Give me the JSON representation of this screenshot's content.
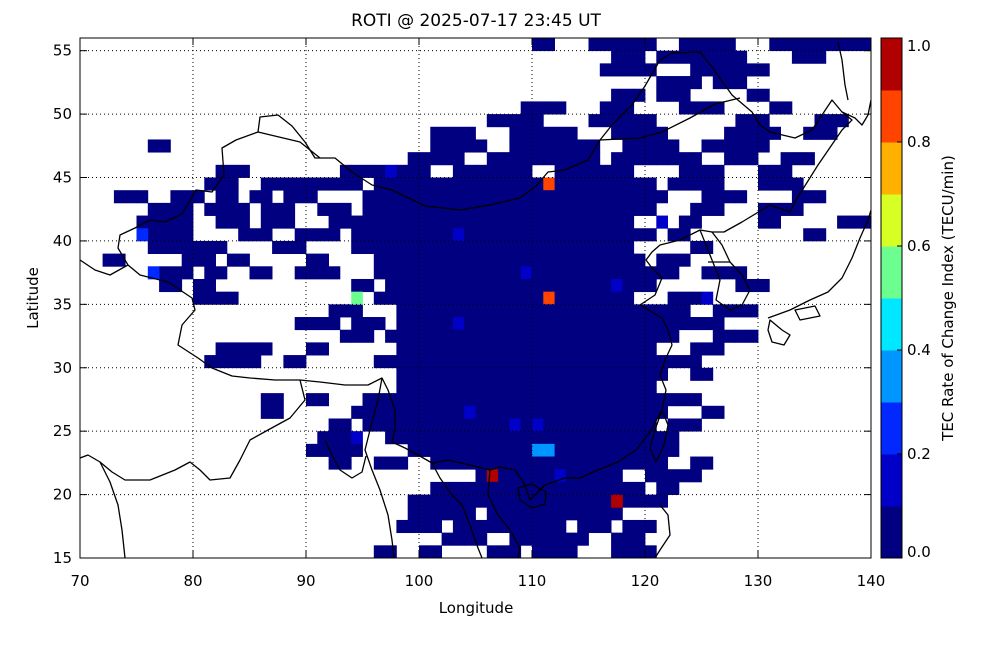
{
  "chart_data": {
    "type": "heatmap",
    "title": "ROTI @ 2025-07-17 23:45 UT",
    "xlabel": "Longitude",
    "ylabel": "Latitude",
    "xlim": [
      70,
      140
    ],
    "ylim": [
      15,
      56
    ],
    "x_ticks": [
      "70",
      "80",
      "90",
      "100",
      "110",
      "120",
      "130",
      "140"
    ],
    "y_ticks": [
      "15",
      "20",
      "25",
      "30",
      "35",
      "40",
      "45",
      "50",
      "55"
    ],
    "grid": true,
    "cell_size_deg": 1,
    "colorbar": {
      "label": "TEC Rate of Change Index (TECU/min)",
      "range": [
        0.0,
        1.0
      ],
      "ticks": [
        "0.0",
        "0.2",
        "0.4",
        "0.6",
        "0.8",
        "1.0"
      ],
      "colors": [
        "#000080",
        "#0000c8",
        "#0028ff",
        "#0096ff",
        "#00e8ff",
        "#6cff90",
        "#d8ff24",
        "#ffb000",
        "#ff4400",
        "#b00000"
      ]
    },
    "background_level": 0.02,
    "rows": [
      {
        "lat": 55,
        "lon_ranges": [
          [
            110,
            111
          ],
          [
            115,
            120
          ],
          [
            123,
            127
          ],
          [
            131,
            139
          ]
        ]
      },
      {
        "lat": 54,
        "lon_ranges": [
          [
            117,
            119
          ],
          [
            121,
            128
          ],
          [
            133,
            135
          ]
        ]
      },
      {
        "lat": 53,
        "lon_ranges": [
          [
            116,
            120
          ],
          [
            124,
            130
          ]
        ]
      },
      {
        "lat": 52,
        "lon_ranges": [
          [
            121,
            124
          ],
          [
            126,
            128
          ]
        ]
      },
      {
        "lat": 51,
        "lon_ranges": [
          [
            117,
            119
          ],
          [
            121,
            123
          ],
          [
            129,
            130
          ]
        ]
      },
      {
        "lat": 50,
        "lon_ranges": [
          [
            109,
            112
          ],
          [
            116,
            118
          ],
          [
            123,
            126
          ],
          [
            131,
            132
          ]
        ]
      },
      {
        "lat": 49,
        "lon_ranges": [
          [
            106,
            110
          ],
          [
            115,
            120
          ],
          [
            128,
            130
          ],
          [
            135,
            137
          ]
        ]
      },
      {
        "lat": 48,
        "lon_ranges": [
          [
            101,
            104
          ],
          [
            108,
            113
          ],
          [
            117,
            121
          ],
          [
            127,
            131
          ],
          [
            134,
            136
          ]
        ]
      },
      {
        "lat": 47,
        "lon_ranges": [
          [
            76,
            77
          ],
          [
            101,
            105
          ],
          [
            108,
            115
          ],
          [
            118,
            122
          ],
          [
            125,
            130
          ]
        ]
      },
      {
        "lat": 46,
        "lon_ranges": [
          [
            99,
            103
          ],
          [
            106,
            115
          ],
          [
            117,
            124
          ],
          [
            127,
            129
          ],
          [
            132,
            134
          ]
        ]
      },
      {
        "lat": 45,
        "lon_ranges": [
          [
            82,
            84
          ],
          [
            93,
            96
          ],
          [
            98,
            100
          ],
          [
            103,
            109
          ],
          [
            112,
            118
          ],
          [
            123,
            126
          ],
          [
            130,
            132
          ]
        ]
      },
      {
        "lat": 44,
        "lon_ranges": [
          [
            81,
            83
          ],
          [
            86,
            94
          ],
          [
            96,
            120
          ],
          [
            122,
            126
          ],
          [
            130,
            133
          ]
        ]
      },
      {
        "lat": 43,
        "lon_ranges": [
          [
            73,
            75
          ],
          [
            78,
            80
          ],
          [
            82,
            83
          ],
          [
            85,
            86
          ],
          [
            88,
            90
          ],
          [
            95,
            121
          ],
          [
            125,
            128
          ],
          [
            133,
            135
          ]
        ]
      },
      {
        "lat": 42,
        "lon_ranges": [
          [
            76,
            79
          ],
          [
            81,
            84
          ],
          [
            86,
            88
          ],
          [
            91,
            93
          ],
          [
            95,
            120
          ],
          [
            124,
            126
          ],
          [
            130,
            133
          ]
        ]
      },
      {
        "lat": 41,
        "lon_ranges": [
          [
            75,
            79
          ],
          [
            82,
            84
          ],
          [
            86,
            88
          ],
          [
            92,
            118
          ],
          [
            123,
            124
          ],
          [
            130,
            131
          ],
          [
            137,
            139
          ]
        ]
      },
      {
        "lat": 40,
        "lon_ranges": [
          [
            76,
            79
          ],
          [
            84,
            86
          ],
          [
            89,
            92
          ],
          [
            94,
            120
          ],
          [
            122,
            123
          ],
          [
            134,
            135
          ]
        ]
      },
      {
        "lat": 39,
        "lon_ranges": [
          [
            76,
            79
          ],
          [
            80,
            82
          ],
          [
            87,
            89
          ],
          [
            94,
            118
          ],
          [
            124,
            125
          ]
        ]
      },
      {
        "lat": 38,
        "lon_ranges": [
          [
            72,
            73
          ],
          [
            79,
            81
          ],
          [
            83,
            84
          ],
          [
            90,
            91
          ],
          [
            96,
            119
          ],
          [
            121,
            123
          ]
        ]
      },
      {
        "lat": 37,
        "lon_ranges": [
          [
            77,
            79
          ],
          [
            81,
            82
          ],
          [
            85,
            86
          ],
          [
            89,
            92
          ],
          [
            96,
            122
          ],
          [
            125,
            128
          ]
        ]
      },
      {
        "lat": 36,
        "lon_ranges": [
          [
            77,
            78
          ],
          [
            80,
            81
          ],
          [
            94,
            95
          ],
          [
            97,
            120
          ],
          [
            128,
            130
          ]
        ]
      },
      {
        "lat": 35,
        "lon_ranges": [
          [
            80,
            83
          ],
          [
            96,
            118
          ],
          [
            122,
            124
          ]
        ]
      },
      {
        "lat": 34,
        "lon_ranges": [
          [
            92,
            94
          ],
          [
            98,
            123
          ],
          [
            126,
            129
          ]
        ]
      },
      {
        "lat": 33,
        "lon_ranges": [
          [
            89,
            92
          ],
          [
            94,
            96
          ],
          [
            98,
            126
          ]
        ]
      },
      {
        "lat": 32,
        "lon_ranges": [
          [
            93,
            95
          ],
          [
            97,
            122
          ],
          [
            126,
            129
          ]
        ]
      },
      {
        "lat": 31,
        "lon_ranges": [
          [
            82,
            86
          ],
          [
            90,
            91
          ],
          [
            98,
            120
          ],
          [
            124,
            126
          ]
        ]
      },
      {
        "lat": 30,
        "lon_ranges": [
          [
            81,
            85
          ],
          [
            88,
            89
          ],
          [
            96,
            124
          ]
        ]
      },
      {
        "lat": 29,
        "lon_ranges": [
          [
            98,
            121
          ],
          [
            124,
            125
          ]
        ]
      },
      {
        "lat": 28,
        "lon_ranges": [
          [
            98,
            120
          ]
        ]
      },
      {
        "lat": 27,
        "lon_ranges": [
          [
            86,
            87
          ],
          [
            90,
            91
          ],
          [
            95,
            122
          ],
          [
            123,
            124
          ]
        ]
      },
      {
        "lat": 26,
        "lon_ranges": [
          [
            86,
            87
          ],
          [
            94,
            121
          ],
          [
            125,
            126
          ]
        ]
      },
      {
        "lat": 25,
        "lon_ranges": [
          [
            92,
            93
          ],
          [
            95,
            120
          ],
          [
            122,
            124
          ]
        ]
      },
      {
        "lat": 24,
        "lon_ranges": [
          [
            91,
            94
          ],
          [
            97,
            122
          ]
        ]
      },
      {
        "lat": 23,
        "lon_ranges": [
          [
            90,
            92
          ],
          [
            93,
            94
          ],
          [
            99,
            118
          ],
          [
            119,
            122
          ]
        ]
      },
      {
        "lat": 22,
        "lon_ranges": [
          [
            92,
            93
          ],
          [
            96,
            98
          ],
          [
            101,
            121
          ],
          [
            124,
            125
          ]
        ]
      },
      {
        "lat": 21,
        "lon_ranges": [
          [
            105,
            117
          ],
          [
            120,
            124
          ]
        ]
      },
      {
        "lat": 20,
        "lon_ranges": [
          [
            101,
            119
          ],
          [
            121,
            122
          ]
        ]
      },
      {
        "lat": 19,
        "lon_ranges": [
          [
            99,
            116
          ],
          [
            118,
            121
          ]
        ]
      },
      {
        "lat": 18,
        "lon_ranges": [
          [
            99,
            104
          ],
          [
            106,
            117
          ]
        ]
      },
      {
        "lat": 17,
        "lon_ranges": [
          [
            98,
            101
          ],
          [
            103,
            112
          ],
          [
            114,
            116
          ],
          [
            118,
            120
          ]
        ]
      },
      {
        "lat": 16,
        "lon_ranges": [
          [
            102,
            105
          ],
          [
            108,
            111
          ],
          [
            112,
            114
          ],
          [
            117,
            119
          ]
        ]
      },
      {
        "lat": 15,
        "lon_ranges": [
          [
            96,
            97
          ],
          [
            100,
            101
          ],
          [
            106,
            108
          ],
          [
            110,
            111
          ],
          [
            112,
            113
          ],
          [
            117,
            120
          ]
        ]
      }
    ],
    "highlights": [
      {
        "lon": 111,
        "lat": 44,
        "value": 0.82
      },
      {
        "lon": 111,
        "lat": 35,
        "value": 0.88
      },
      {
        "lon": 94,
        "lat": 35,
        "value": 0.55
      },
      {
        "lon": 106,
        "lat": 21,
        "value": 0.97
      },
      {
        "lon": 117,
        "lat": 19,
        "value": 0.97
      },
      {
        "lon": 110,
        "lat": 23,
        "value": 0.37
      },
      {
        "lon": 111,
        "lat": 23,
        "value": 0.37
      },
      {
        "lon": 75,
        "lat": 40,
        "value": 0.28
      },
      {
        "lon": 76,
        "lat": 37,
        "value": 0.28
      },
      {
        "lon": 121,
        "lat": 41,
        "value": 0.15
      },
      {
        "lon": 109,
        "lat": 37,
        "value": 0.13
      },
      {
        "lon": 117,
        "lat": 36,
        "value": 0.13
      },
      {
        "lon": 125,
        "lat": 35,
        "value": 0.13
      },
      {
        "lon": 103,
        "lat": 33,
        "value": 0.12
      },
      {
        "lon": 108,
        "lat": 25,
        "value": 0.12
      },
      {
        "lon": 110,
        "lat": 25,
        "value": 0.16
      },
      {
        "lon": 104,
        "lat": 26,
        "value": 0.1
      },
      {
        "lon": 112,
        "lat": 21,
        "value": 0.16
      },
      {
        "lon": 94,
        "lat": 24,
        "value": 0.1
      },
      {
        "lon": 103,
        "lat": 40,
        "value": 0.1
      },
      {
        "lon": 97,
        "lat": 45,
        "value": 0.12
      },
      {
        "lon": 86,
        "lat": 40,
        "value": 0.08
      }
    ]
  }
}
